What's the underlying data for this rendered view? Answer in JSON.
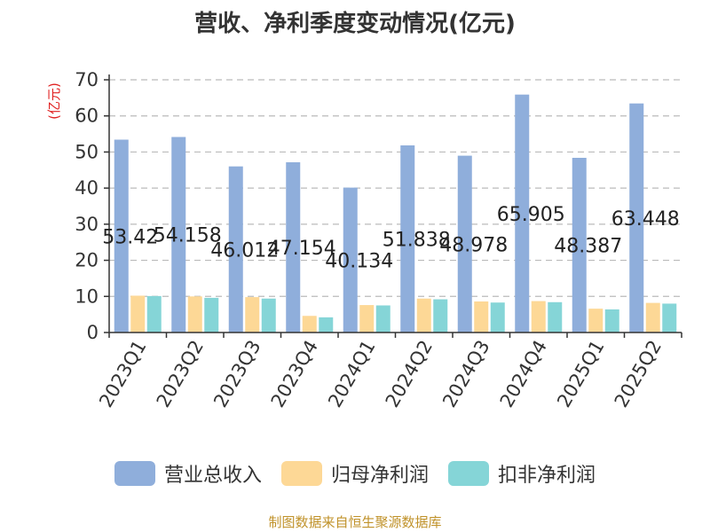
{
  "title": "营收、净利季度变动情况(亿元)",
  "source_note": "制图数据来自恒生聚源数据库",
  "colors": {
    "revenue": "#8faedb",
    "net_profit": "#fdd896",
    "deducted_net_profit": "#85d5d7",
    "unit_label": "#e02020",
    "grid": "#bbbbbb",
    "axis": "#333333",
    "text": "#333333"
  },
  "chart_data": {
    "type": "bar",
    "title": "营收、净利季度变动情况(亿元)",
    "ylabel": "(亿元)",
    "xlabel": "",
    "ylim": [
      0,
      70
    ],
    "yticks": [
      0,
      10,
      20,
      30,
      40,
      50,
      60,
      70
    ],
    "grid": true,
    "legend_position": "bottom",
    "categories": [
      "2023Q1",
      "2023Q2",
      "2023Q3",
      "2023Q4",
      "2024Q1",
      "2024Q2",
      "2024Q3",
      "2024Q4",
      "2025Q1",
      "2025Q2"
    ],
    "series": [
      {
        "name": "营业总收入",
        "values": [
          53.42,
          54.158,
          46.012,
          47.154,
          40.134,
          51.838,
          48.978,
          65.905,
          48.387,
          63.448
        ]
      },
      {
        "name": "归母净利润",
        "values": [
          10.2,
          10.0,
          9.8,
          4.6,
          7.6,
          9.4,
          8.6,
          8.7,
          6.6,
          8.2
        ]
      },
      {
        "name": "扣非净利润",
        "values": [
          10.1,
          9.6,
          9.4,
          4.2,
          7.5,
          9.2,
          8.3,
          8.4,
          6.4,
          8.0
        ]
      }
    ],
    "data_labels": [
      "53.42",
      "54.158",
      "46.012",
      "47.154",
      "40.134",
      "51.838",
      "48.978",
      "65.905",
      "48.387",
      "63.448"
    ]
  }
}
